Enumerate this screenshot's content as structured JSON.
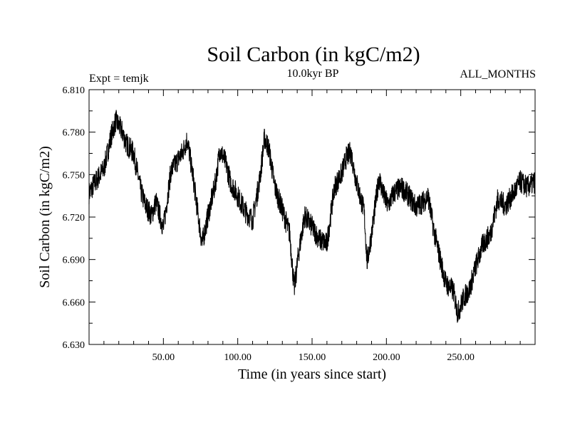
{
  "chart_data": {
    "type": "line",
    "title": "Soil Carbon (in kgC/m2)",
    "subtitle_left": "Expt = temjk",
    "subtitle_center": "10.0kyr BP",
    "subtitle_right": "ALL_MONTHS",
    "xlabel": "Time (in years since start)",
    "ylabel": "Soil Carbon (in kgC/m2)",
    "xlim": [
      0,
      300
    ],
    "ylim": [
      6.63,
      6.81
    ],
    "xticks": [
      50,
      100,
      150,
      200,
      250
    ],
    "xtick_labels": [
      "50.00",
      "100.00",
      "150.00",
      "200.00",
      "250.00"
    ],
    "yticks": [
      6.63,
      6.66,
      6.69,
      6.72,
      6.75,
      6.78,
      6.81
    ],
    "ytick_labels": [
      "6.630",
      "6.660",
      "6.690",
      "6.720",
      "6.750",
      "6.780",
      "6.810"
    ],
    "series": [
      {
        "name": "Soil Carbon",
        "color": "#000000",
        "x": [
          0,
          5,
          10,
          15,
          18,
          22,
          25,
          30,
          35,
          38,
          42,
          45,
          50,
          55,
          60,
          63,
          66,
          70,
          73,
          76,
          80,
          85,
          88,
          92,
          95,
          100,
          105,
          110,
          115,
          118,
          121,
          125,
          130,
          135,
          138,
          141,
          145,
          150,
          155,
          160,
          165,
          170,
          173,
          176,
          180,
          185,
          187,
          190,
          195,
          198,
          201,
          205,
          210,
          215,
          220,
          225,
          228,
          232,
          236,
          240,
          245,
          248,
          252,
          256,
          260,
          265,
          270,
          275,
          280,
          285,
          290,
          295,
          300
        ],
        "y": [
          6.737,
          6.746,
          6.754,
          6.778,
          6.788,
          6.781,
          6.772,
          6.765,
          6.738,
          6.728,
          6.721,
          6.731,
          6.712,
          6.752,
          6.761,
          6.766,
          6.775,
          6.748,
          6.724,
          6.701,
          6.721,
          6.744,
          6.768,
          6.758,
          6.745,
          6.735,
          6.724,
          6.718,
          6.748,
          6.776,
          6.768,
          6.741,
          6.725,
          6.708,
          6.669,
          6.695,
          6.721,
          6.713,
          6.704,
          6.701,
          6.741,
          6.751,
          6.762,
          6.766,
          6.744,
          6.724,
          6.688,
          6.708,
          6.748,
          6.736,
          6.728,
          6.737,
          6.741,
          6.735,
          6.727,
          6.731,
          6.735,
          6.71,
          6.691,
          6.673,
          6.668,
          6.652,
          6.663,
          6.669,
          6.685,
          6.701,
          6.708,
          6.733,
          6.728,
          6.736,
          6.745,
          6.741,
          6.745
        ]
      }
    ]
  }
}
